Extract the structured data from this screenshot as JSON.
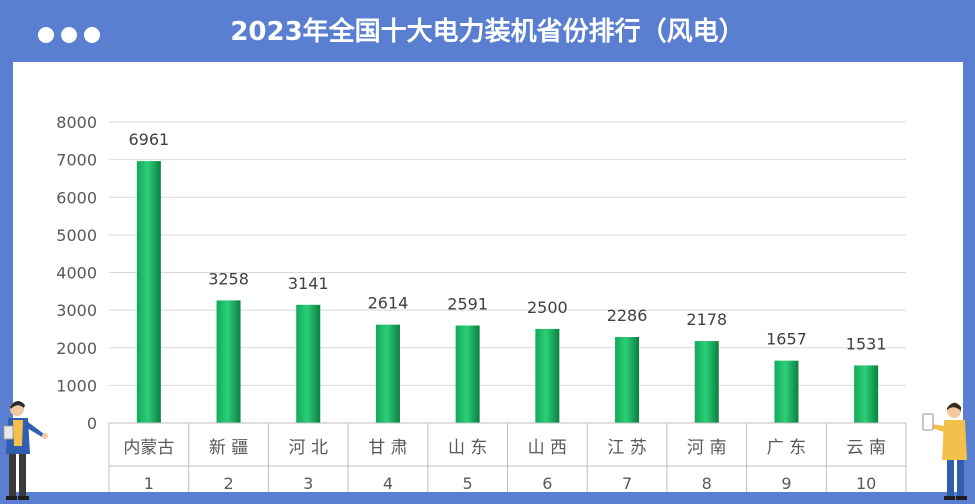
{
  "header": {
    "title": "2023年全国十大电力装机省份排行（风电）",
    "dots": [
      "dot-1",
      "dot-2",
      "dot-3"
    ]
  },
  "colors": {
    "frame": "#5a7fd1",
    "bar_light": "#22c46e",
    "bar_dark": "#0d8a45",
    "grid": "#d9d9d9",
    "axis_text": "#595959",
    "value_text": "#404040"
  },
  "decorations": [
    "person-left-illustration",
    "person-right-illustration"
  ],
  "chart_data": {
    "type": "bar",
    "title": "2023年全国十大电力装机省份排行（风电）",
    "categories": [
      "内蒙古",
      "新 疆",
      "河 北",
      "甘 肃",
      "山 东",
      "山 西",
      "江 苏",
      "河 南",
      "广 东",
      "云 南"
    ],
    "ranks": [
      "1",
      "2",
      "3",
      "4",
      "5",
      "6",
      "7",
      "8",
      "9",
      "10"
    ],
    "values": [
      6961,
      3258,
      3141,
      2614,
      2591,
      2500,
      2286,
      2178,
      1657,
      1531
    ],
    "ylim": [
      0,
      8000
    ],
    "yticks": [
      0,
      1000,
      2000,
      3000,
      4000,
      5000,
      6000,
      7000,
      8000
    ],
    "grid": true,
    "legend": "none",
    "data_labels": true
  }
}
